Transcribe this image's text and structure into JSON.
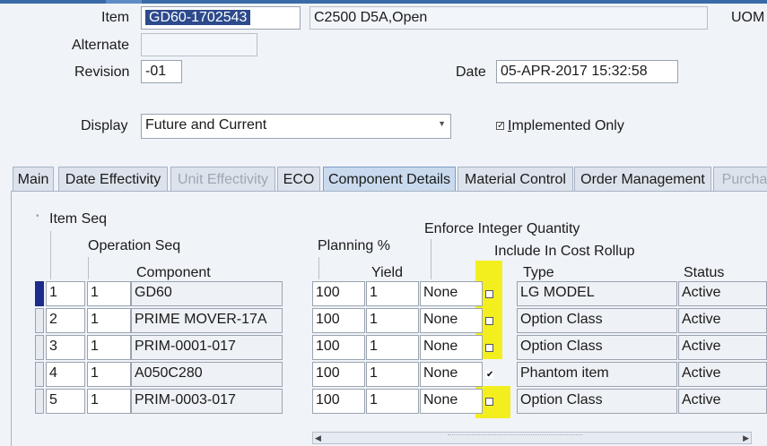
{
  "header": {
    "item_label": "Item",
    "item_value": "GD60-1702543",
    "item_desc": "C2500 D5A,Open",
    "uom_label": "UOM",
    "alternate_label": "Alternate",
    "alternate_value": "",
    "revision_label": "Revision",
    "revision_value": "-01",
    "date_label": "Date",
    "date_value": "05-APR-2017 15:32:58",
    "display_label": "Display",
    "display_value": "Future and Current",
    "implemented_only_label": "Implemented Only",
    "implemented_only_checked": true
  },
  "tabs": [
    {
      "label": "Main",
      "state": "normal"
    },
    {
      "label": "Date Effectivity",
      "state": "normal"
    },
    {
      "label": "Unit Effectivity",
      "state": "disabled"
    },
    {
      "label": "ECO",
      "state": "normal"
    },
    {
      "label": "Component Details",
      "state": "active"
    },
    {
      "label": "Material Control",
      "state": "normal"
    },
    {
      "label": "Order Management",
      "state": "normal"
    },
    {
      "label": "Purcha",
      "state": "disabled"
    }
  ],
  "columns": {
    "item_seq": "Item Seq",
    "operation_seq": "Operation Seq",
    "component": "Component",
    "planning_pct": "Planning %",
    "yield": "Yield",
    "enforce_integer_quantity": "Enforce Integer Quantity",
    "include_in_cost_rollup": "Include In Cost Rollup",
    "type": "Type",
    "status": "Status"
  },
  "rows": [
    {
      "item_seq": "1",
      "op_seq": "1",
      "component": "GD60",
      "planning": "100",
      "yield": "1",
      "enforce": "None",
      "cost_rollup": false,
      "type": "LG MODEL",
      "status": "Active"
    },
    {
      "item_seq": "2",
      "op_seq": "1",
      "component": "PRIME MOVER-17A",
      "planning": "100",
      "yield": "1",
      "enforce": "None",
      "cost_rollup": false,
      "type": "Option Class",
      "status": "Active"
    },
    {
      "item_seq": "3",
      "op_seq": "1",
      "component": "PRIM-0001-017",
      "planning": "100",
      "yield": "1",
      "enforce": "None",
      "cost_rollup": false,
      "type": "Option Class",
      "status": "Active"
    },
    {
      "item_seq": "4",
      "op_seq": "1",
      "component": "A050C280",
      "planning": "100",
      "yield": "1",
      "enforce": "None",
      "cost_rollup": true,
      "type": "Phantom item",
      "status": "Active"
    },
    {
      "item_seq": "5",
      "op_seq": "1",
      "component": "PRIM-0003-017",
      "planning": "100",
      "yield": "1",
      "enforce": "None",
      "cost_rollup": false,
      "type": "Option Class",
      "status": "Active"
    }
  ],
  "colors": {
    "highlight": "#f3ef1f",
    "active_tab": "#c9daef",
    "current_row": "#1c2b8c"
  }
}
